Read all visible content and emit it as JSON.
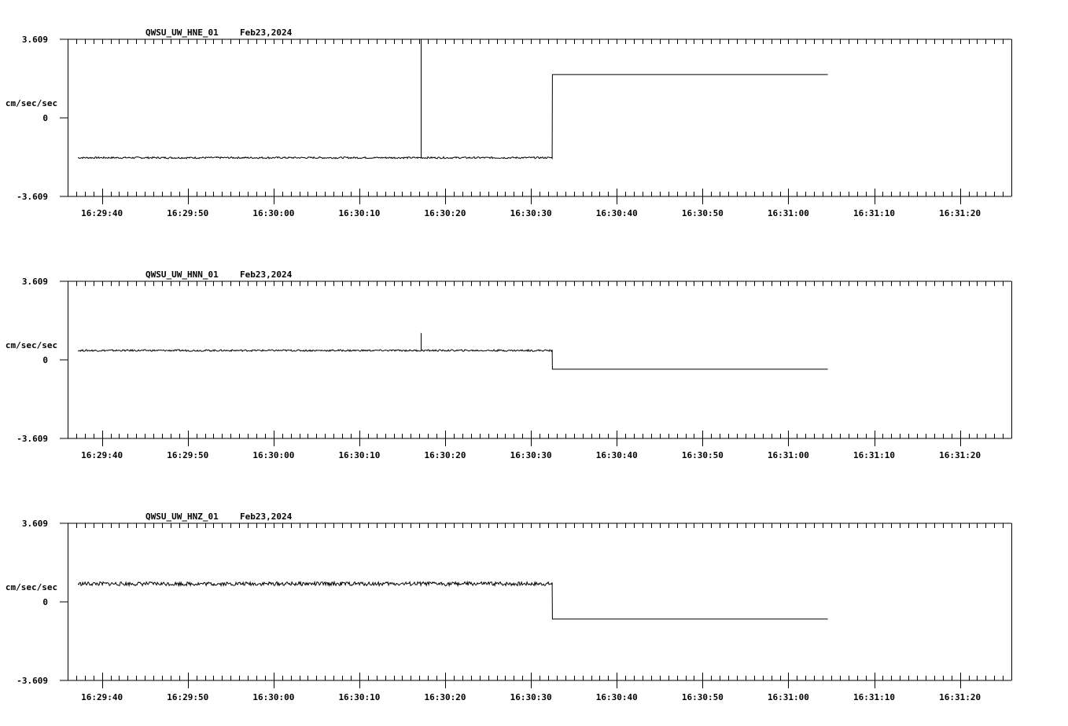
{
  "chart_data": [
    {
      "type": "line",
      "title": "QWSU_UW_HNE_01",
      "date": "Feb23,2024",
      "ylabel": "cm/sec/sec",
      "ylim": [
        -3.609,
        3.609
      ],
      "ytick_labels": [
        "3.609",
        "0",
        "-3.609"
      ],
      "xtick_labels": [
        "16:29:40",
        "16:29:50",
        "16:30:00",
        "16:30:10",
        "16:30:20",
        "16:30:30",
        "16:30:40",
        "16:30:50",
        "16:31:00",
        "16:31:10",
        "16:31:20"
      ],
      "x_range": [
        "16:29:36",
        "16:31:26"
      ],
      "grid": false,
      "series": [
        {
          "name": "HNE",
          "segments": [
            {
              "from_s": 37.2,
              "to_s": 92.5,
              "value": -1.83,
              "noise": 0.04
            },
            {
              "spike_at_s": 77.2,
              "peak": 3.609
            },
            {
              "from_s": 92.5,
              "to_s": 124.6,
              "value": 1.99
            }
          ]
        }
      ]
    },
    {
      "type": "line",
      "title": "QWSU_UW_HNN_01",
      "date": "Feb23,2024",
      "ylabel": "cm/sec/sec",
      "ylim": [
        -3.609,
        3.609
      ],
      "ytick_labels": [
        "3.609",
        "0",
        "-3.609"
      ],
      "xtick_labels": [
        "16:29:40",
        "16:29:50",
        "16:30:00",
        "16:30:10",
        "16:30:20",
        "16:30:30",
        "16:30:40",
        "16:30:50",
        "16:31:00",
        "16:31:10",
        "16:31:20"
      ],
      "x_range": [
        "16:29:36",
        "16:31:26"
      ],
      "grid": false,
      "series": [
        {
          "name": "HNN",
          "segments": [
            {
              "from_s": 37.2,
              "to_s": 92.5,
              "value": 0.43,
              "noise": 0.04
            },
            {
              "spike_at_s": 77.2,
              "peak": 1.23
            },
            {
              "from_s": 92.5,
              "to_s": 124.6,
              "value": -0.43
            }
          ]
        }
      ]
    },
    {
      "type": "line",
      "title": "QWSU_UW_HNZ_01",
      "date": "Feb23,2024",
      "ylabel": "cm/sec/sec",
      "ylim": [
        -3.609,
        3.609
      ],
      "ytick_labels": [
        "3.609",
        "0",
        "-3.609"
      ],
      "xtick_labels": [
        "16:29:40",
        "16:29:50",
        "16:30:00",
        "16:30:10",
        "16:30:20",
        "16:30:30",
        "16:30:40",
        "16:30:50",
        "16:31:00",
        "16:31:10",
        "16:31:20"
      ],
      "x_range": [
        "16:29:36",
        "16:31:26"
      ],
      "grid": false,
      "series": [
        {
          "name": "HNZ",
          "segments": [
            {
              "from_s": 37.2,
              "to_s": 92.5,
              "value": 0.83,
              "noise": 0.09
            },
            {
              "from_s": 92.5,
              "to_s": 124.6,
              "value": -0.79
            }
          ]
        }
      ]
    }
  ]
}
